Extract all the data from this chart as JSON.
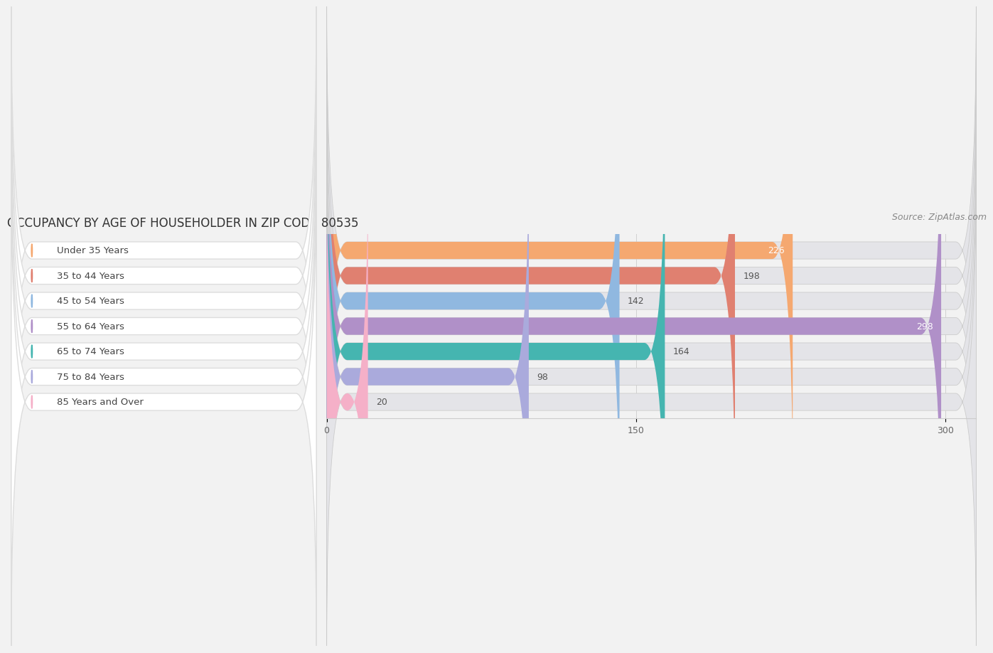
{
  "title": "OCCUPANCY BY AGE OF HOUSEHOLDER IN ZIP CODE 80535",
  "source": "Source: ZipAtlas.com",
  "categories": [
    "Under 35 Years",
    "35 to 44 Years",
    "45 to 54 Years",
    "55 to 64 Years",
    "65 to 74 Years",
    "75 to 84 Years",
    "85 Years and Over"
  ],
  "values": [
    226,
    198,
    142,
    298,
    164,
    98,
    20
  ],
  "bar_colors": [
    "#F5A870",
    "#E08070",
    "#90B8E0",
    "#B090C8",
    "#45B5B0",
    "#AAAADC",
    "#F5B0C8"
  ],
  "xlim_left": -155,
  "xlim_right": 320,
  "xticks": [
    0,
    150,
    300
  ],
  "title_fontsize": 12,
  "source_fontsize": 9,
  "label_fontsize": 9.5,
  "value_fontsize": 9,
  "bar_height": 0.68,
  "background_color": "#f2f2f2",
  "bar_bg_color": "#e4e4e8",
  "label_box_color": "#ffffff",
  "label_text_color": "#444444",
  "grid_color": "#d0d0d0"
}
